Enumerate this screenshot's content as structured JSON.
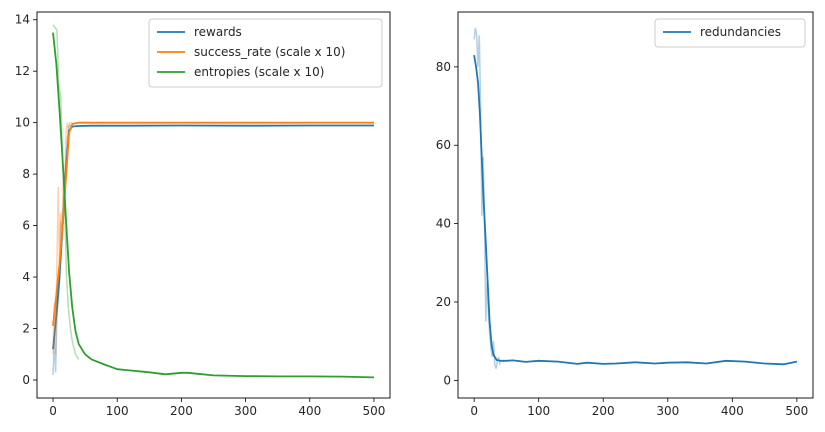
{
  "chart_data": [
    {
      "type": "line",
      "xlim": [
        -25,
        525
      ],
      "ylim": [
        -0.7,
        14.3
      ],
      "xticks": [
        0,
        100,
        200,
        300,
        400,
        500
      ],
      "yticks": [
        0,
        2,
        4,
        6,
        8,
        10,
        12,
        14
      ],
      "legend_position": "top-right",
      "series": [
        {
          "name": "rewards",
          "color": "#1f77b4",
          "x": [
            0,
            5,
            10,
            15,
            20,
            25,
            30,
            40,
            60,
            100,
            200,
            300,
            400,
            500
          ],
          "values": [
            1.2,
            2.5,
            4.0,
            6.0,
            8.2,
            9.7,
            9.85,
            9.87,
            9.88,
            9.88,
            9.89,
            9.88,
            9.89,
            9.89
          ],
          "raw_x": [
            0,
            2,
            4,
            6,
            8,
            10,
            12,
            14,
            16,
            18,
            20,
            22,
            24,
            26,
            28,
            30
          ],
          "raw_values": [
            0.2,
            1.5,
            0.3,
            2.4,
            3.1,
            3.8,
            6.2,
            5.4,
            6.8,
            7.8,
            8.6,
            9.3,
            9.8,
            9.9,
            9.85,
            9.88
          ]
        },
        {
          "name": "success_rate (scale x 10)",
          "color": "#ff7f0e",
          "x": [
            0,
            5,
            10,
            15,
            20,
            25,
            30,
            40,
            60,
            100,
            200,
            300,
            400,
            500
          ],
          "values": [
            2.1,
            3.3,
            4.5,
            6.0,
            7.8,
            9.6,
            9.95,
            10.0,
            10.0,
            10.0,
            10.0,
            10.0,
            10.0,
            10.0
          ],
          "raw_x": [
            0,
            2,
            4,
            6,
            8,
            10,
            12,
            14,
            16,
            18,
            20,
            22,
            24,
            26,
            28,
            30
          ],
          "raw_values": [
            1.0,
            3.0,
            1.0,
            4.5,
            7.5,
            4.2,
            6.5,
            5.5,
            8.0,
            7.0,
            9.5,
            10.0,
            9.8,
            10.0,
            10.0,
            10.0
          ]
        },
        {
          "name": "entropies (scale x 10)",
          "color": "#2ca02c",
          "x": [
            0,
            5,
            10,
            15,
            20,
            25,
            30,
            35,
            40,
            50,
            60,
            80,
            100,
            150,
            175,
            200,
            210,
            250,
            300,
            350,
            400,
            450,
            500
          ],
          "values": [
            13.5,
            12.3,
            10.5,
            8.5,
            6.3,
            4.2,
            2.8,
            1.9,
            1.4,
            1.0,
            0.8,
            0.6,
            0.42,
            0.3,
            0.22,
            0.28,
            0.28,
            0.18,
            0.15,
            0.14,
            0.14,
            0.13,
            0.1
          ],
          "raw_x": [
            0,
            3,
            6,
            9,
            12,
            15,
            18,
            21,
            24,
            27,
            30,
            35,
            40
          ],
          "raw_values": [
            13.8,
            13.7,
            13.6,
            11.5,
            11.0,
            8.5,
            7.0,
            4.0,
            2.8,
            2.0,
            1.5,
            1.0,
            0.8
          ]
        }
      ]
    },
    {
      "type": "line",
      "xlim": [
        -25,
        525
      ],
      "ylim": [
        -4.5,
        94
      ],
      "xticks": [
        0,
        100,
        200,
        300,
        400,
        500
      ],
      "yticks": [
        0,
        20,
        40,
        60,
        80
      ],
      "legend_position": "top-right",
      "series": [
        {
          "name": "redundancies",
          "color": "#1f77b4",
          "x": [
            0,
            3,
            6,
            9,
            12,
            15,
            18,
            21,
            24,
            27,
            30,
            35,
            40,
            50,
            60,
            80,
            100,
            130,
            160,
            175,
            200,
            220,
            250,
            280,
            300,
            330,
            360,
            390,
            420,
            450,
            480,
            500
          ],
          "values": [
            83,
            80,
            76,
            68,
            56,
            45,
            35,
            25,
            15,
            9,
            6.5,
            5.2,
            5.0,
            5.0,
            5.1,
            4.7,
            5.0,
            4.8,
            4.2,
            4.5,
            4.2,
            4.3,
            4.6,
            4.3,
            4.5,
            4.6,
            4.3,
            5.0,
            4.8,
            4.3,
            4.1,
            4.8
          ],
          "raw_x": [
            0,
            2,
            4,
            6,
            8,
            10,
            12,
            14,
            16,
            18,
            20,
            22,
            24,
            26,
            28,
            30,
            32,
            34,
            36,
            38,
            40
          ],
          "raw_values": [
            87,
            90,
            88,
            80,
            88,
            70,
            42,
            57,
            40,
            15,
            25,
            18,
            12,
            8,
            6,
            10,
            4,
            3,
            5,
            6,
            4
          ]
        }
      ]
    }
  ]
}
